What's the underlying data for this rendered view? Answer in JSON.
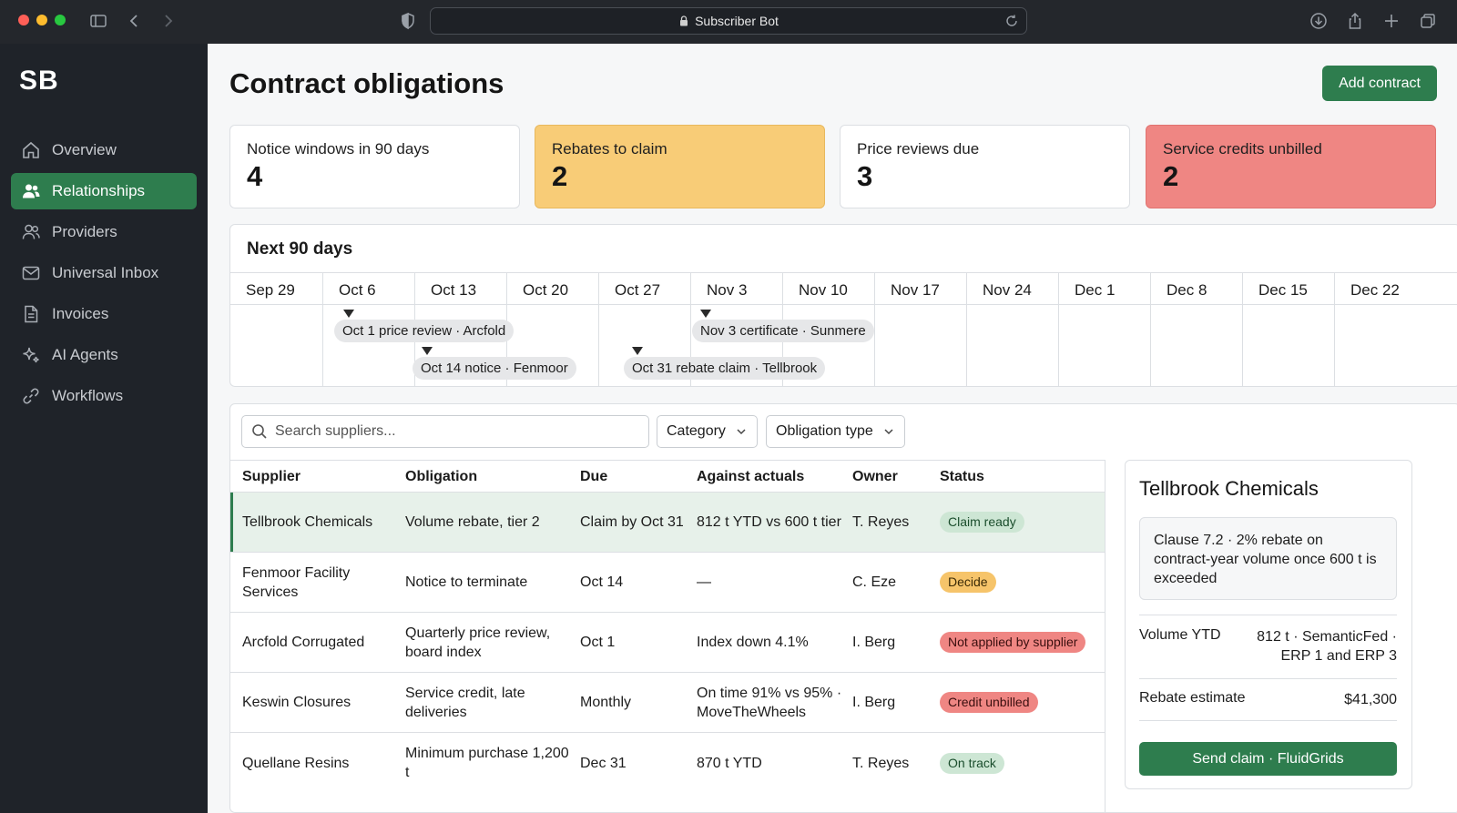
{
  "browser": {
    "url_title": "Subscriber Bot",
    "icons": [
      "sidebar-toggle-icon",
      "back-icon",
      "forward-icon",
      "shield-icon",
      "lock-icon",
      "reload-icon",
      "download-icon",
      "share-icon",
      "new-tab-icon",
      "tabs-overview-icon"
    ]
  },
  "sidebar": {
    "brand": "SB",
    "items": [
      {
        "label": "Overview",
        "icon": "home-icon",
        "active": false
      },
      {
        "label": "Relationships",
        "icon": "users-icon",
        "active": true
      },
      {
        "label": "Providers",
        "icon": "people-icon",
        "active": false
      },
      {
        "label": "Universal Inbox",
        "icon": "mail-icon",
        "active": false
      },
      {
        "label": "Invoices",
        "icon": "document-icon",
        "active": false
      },
      {
        "label": "AI Agents",
        "icon": "sparkle-icon",
        "active": false
      },
      {
        "label": "Workflows",
        "icon": "link-icon",
        "active": false
      }
    ]
  },
  "header": {
    "title": "Contract obligations",
    "add_label": "Add contract"
  },
  "kpis": [
    {
      "label": "Notice windows in 90 days",
      "value": "4",
      "tone": "neutral"
    },
    {
      "label": "Rebates to claim",
      "value": "2",
      "tone": "amber"
    },
    {
      "label": "Price reviews due",
      "value": "3",
      "tone": "neutral"
    },
    {
      "label": "Service credits unbilled",
      "value": "2",
      "tone": "red"
    }
  ],
  "timeline": {
    "title": "Next 90 days",
    "weeks": [
      "Sep 29",
      "Oct 6",
      "Oct 13",
      "Oct 20",
      "Oct 27",
      "Nov 3",
      "Nov 10",
      "Nov 17",
      "Nov 24",
      "Dec 1",
      "Dec 8",
      "Dec 15",
      "Dec 22"
    ],
    "events": [
      {
        "label": "Oct 1 price review · Arcfold",
        "date": "Oct 1"
      },
      {
        "label": "Oct 14 notice · Fenmoor",
        "date": "Oct 14"
      },
      {
        "label": "Oct 31 rebate claim · Tellbrook",
        "date": "Oct 31"
      },
      {
        "label": "Nov 3 certificate · Sunmere",
        "date": "Nov 3"
      }
    ]
  },
  "filters": {
    "search_placeholder": "Search suppliers...",
    "category_label": "Category",
    "obligation_type_label": "Obligation type"
  },
  "table": {
    "headers": [
      "Supplier",
      "Obligation",
      "Due",
      "Against actuals",
      "Owner",
      "Status"
    ],
    "rows": [
      {
        "supplier": "Tellbrook Chemicals",
        "obligation": "Volume rebate, tier 2",
        "due": "Claim by Oct 31",
        "actuals": "812 t YTD vs 600 t tier",
        "owner": "T. Reyes",
        "status": "Claim ready",
        "tone": "green",
        "selected": true
      },
      {
        "supplier": "Fenmoor Facility Services",
        "obligation": "Notice to terminate",
        "due": "Oct 14",
        "actuals": "—",
        "owner": "C. Eze",
        "status": "Decide",
        "tone": "amber",
        "selected": false
      },
      {
        "supplier": "Arcfold Corrugated",
        "obligation": "Quarterly price review, board index",
        "due": "Oct 1",
        "actuals": "Index down 4.1%",
        "owner": "I. Berg",
        "status": "Not applied by supplier",
        "tone": "red",
        "selected": false
      },
      {
        "supplier": "Keswin Closures",
        "obligation": "Service credit, late deliveries",
        "due": "Monthly",
        "actuals": "On time 91% vs 95% · MoveTheWheels",
        "owner": "I. Berg",
        "status": "Credit unbilled",
        "tone": "red",
        "selected": false
      },
      {
        "supplier": "Quellane Resins",
        "obligation": "Minimum purchase 1,200 t",
        "due": "Dec 31",
        "actuals": "870 t YTD",
        "owner": "T. Reyes",
        "status": "On track",
        "tone": "green",
        "selected": false
      }
    ]
  },
  "detail": {
    "title": "Tellbrook Chemicals",
    "clause": "Clause 7.2 · 2% rebate on contract-year volume once 600 t is exceeded",
    "volume_label": "Volume YTD",
    "volume_value": "812 t · SemanticFed · ERP 1 and ERP 3",
    "rebate_label": "Rebate estimate",
    "rebate_value": "$41,300",
    "send_label": "Send claim · FluidGrids"
  },
  "colors": {
    "accent": "#2e7d4e",
    "amber": "#f8cc77",
    "red": "#ef8683",
    "sidebar_bg": "#1f2329"
  }
}
